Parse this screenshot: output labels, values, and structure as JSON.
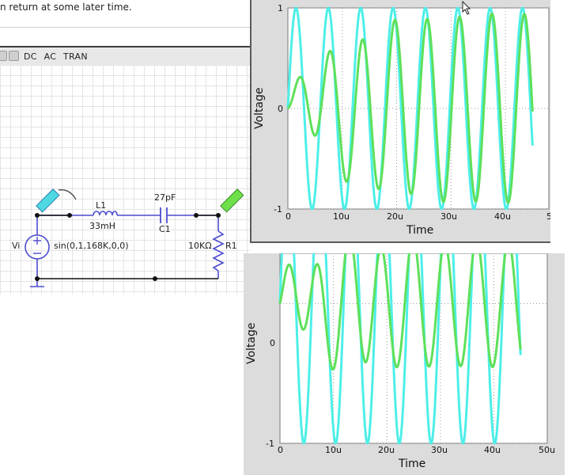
{
  "help": {
    "text": "n return at some later time."
  },
  "toolbar": {
    "labels": [
      "DC",
      "AC",
      "TRAN"
    ]
  },
  "schematic": {
    "source_name": "Vi",
    "source_expr": "sin(0,1,168K,0,0)",
    "inductor_name": "L1",
    "inductor_value": "33mH",
    "capacitor_value": "27pF",
    "capacitor_name": "C1",
    "resistor_value": "10KΩ",
    "resistor_name": "R1",
    "probe_in_color": "#4fd8e0",
    "probe_out_color": "#6de04a",
    "wire_color": "#4b4bd0"
  },
  "plot1": {
    "ylabel": "Voltage",
    "xlabel": "Time",
    "ytick_labels": [
      "1",
      "0",
      "-1"
    ],
    "xtick_labels": [
      "0",
      "10u",
      "20u",
      "30u",
      "40u",
      "5"
    ]
  },
  "plot2": {
    "ylabel": "Voltage",
    "xlabel": "Time",
    "ytick_labels": [
      "0",
      "-1"
    ],
    "xtick_labels": [
      "0",
      "10u",
      "20u",
      "30u",
      "40u",
      "50u"
    ]
  },
  "chart_data": [
    {
      "type": "line",
      "xlabel": "Time",
      "ylabel": "Voltage",
      "xlim": [
        0,
        4.8e-05
      ],
      "ylim": [
        -1,
        1
      ],
      "grid": true,
      "series": [
        {
          "color": "#4deee8",
          "x": [
            0,
            4.5e-05
          ],
          "frequency_hz": 168000,
          "amplitude": 1
        },
        {
          "color": "#5ee05a",
          "x": [
            0,
            4.5e-05
          ],
          "frequency_hz": 168000,
          "amplitude_final": 0.95
        }
      ]
    },
    {
      "type": "line",
      "xlabel": "Time",
      "ylabel": "Voltage",
      "xlim": [
        0,
        5e-05
      ],
      "ylim": [
        -1,
        1
      ],
      "grid": true,
      "series": [
        {
          "color": "#4deee8",
          "x": [
            0,
            4.5e-05
          ],
          "frequency_hz": 168000,
          "amplitude": 1
        },
        {
          "color": "#5ee05a",
          "x": [
            0,
            4.5e-05
          ],
          "frequency_hz": 168000,
          "amplitude_final": 0.45
        }
      ]
    }
  ]
}
